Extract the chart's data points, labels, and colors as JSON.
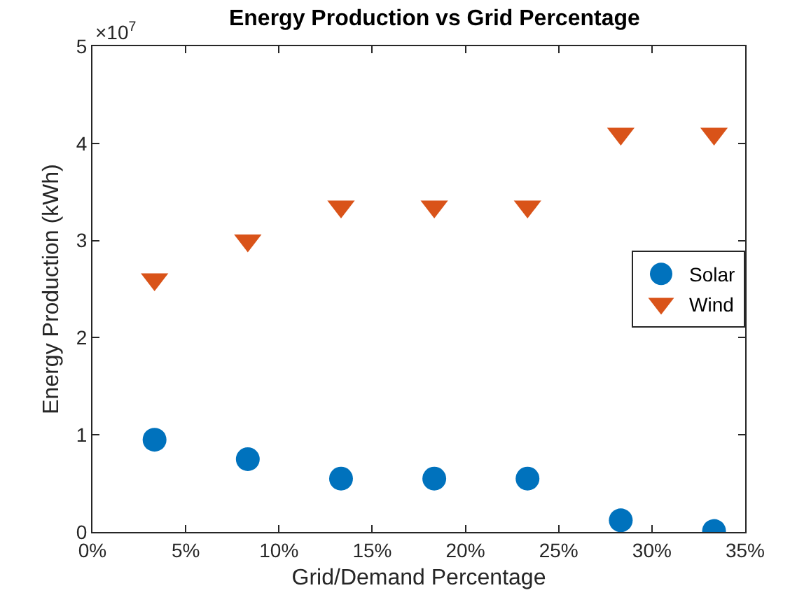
{
  "chart_data": {
    "type": "scatter",
    "title": "Energy Production vs Grid Percentage",
    "xlabel": "Grid/Demand Percentage",
    "ylabel": "Energy Production (kWh)",
    "annotations": [
      "×10$^{7}$"
    ],
    "x": [
      3.33,
      8.33,
      13.33,
      18.33,
      23.33,
      28.33,
      33.33
    ],
    "series": [
      {
        "name": "Solar",
        "color": "#0072bd",
        "marker": "circle",
        "values": [
          0.95,
          0.75,
          0.55,
          0.55,
          0.55,
          0.12,
          0.01
        ]
      },
      {
        "name": "Wind",
        "color": "#d95319",
        "marker": "triangle",
        "values": [
          2.6,
          3.0,
          3.35,
          3.35,
          3.35,
          4.1,
          4.1
        ]
      }
    ],
    "xlim": [
      0,
      35
    ],
    "xticks": [
      {
        "value": 0,
        "label": "0%"
      },
      {
        "value": 5,
        "label": "5%"
      },
      {
        "value": 10,
        "label": "10%"
      },
      {
        "value": 15,
        "label": "15%"
      },
      {
        "value": 20,
        "label": "20%"
      },
      {
        "value": 25,
        "label": "25%"
      },
      {
        "value": 30,
        "label": "30%"
      },
      {
        "value": 35,
        "label": "35%"
      }
    ],
    "ylim": [
      0,
      5
    ],
    "yticks": [
      0,
      1,
      2,
      3,
      4,
      5
    ],
    "grid": false,
    "legend": "right"
  }
}
